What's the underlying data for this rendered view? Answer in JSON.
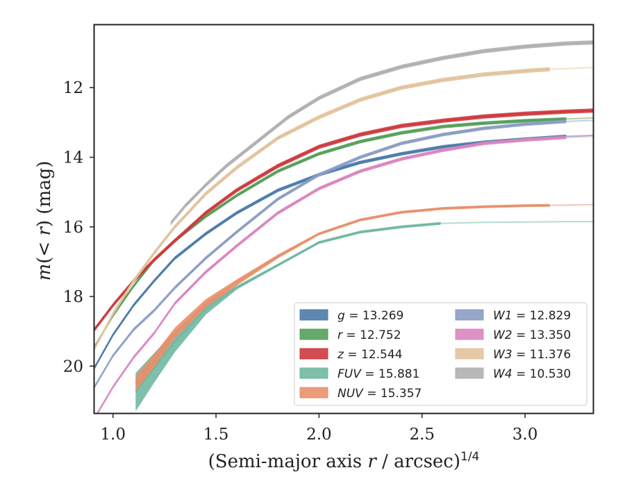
{
  "chart_data": {
    "type": "line",
    "xlabel": "(Semi-major axis r / arcsec)",
    "xlabel_parts": {
      "before": "(Semi-major axis ",
      "var": "r",
      "after": " / arcsec)",
      "sup": "1/4"
    },
    "ylabel": "m(<r) (mag)",
    "ylabel_parts": {
      "m": "m",
      "inner": "(< ",
      "r": "r",
      "close": ")",
      "unit": " (mag)"
    },
    "xlim": [
      0.91,
      3.33
    ],
    "ylim": [
      21.35,
      10.2
    ],
    "y_inverted": true,
    "xticks": [
      {
        "value": 1.0,
        "label": "1.0"
      },
      {
        "value": 1.5,
        "label": "1.5"
      },
      {
        "value": 2.0,
        "label": "2.0"
      },
      {
        "value": 2.5,
        "label": "2.5"
      },
      {
        "value": 3.0,
        "label": "3.0"
      }
    ],
    "yticks": [
      {
        "value": 12,
        "label": "12"
      },
      {
        "value": 14,
        "label": "14"
      },
      {
        "value": 16,
        "label": "16"
      },
      {
        "value": 18,
        "label": "18"
      },
      {
        "value": 20,
        "label": "20"
      }
    ],
    "grid": false,
    "legend_position": "lower-right",
    "legend_columns": 2,
    "series": [
      {
        "name": "g",
        "total": "13.269",
        "color": "#4C7BAA",
        "x": [
          0.91,
          1.0,
          1.1,
          1.2,
          1.3,
          1.45,
          1.6,
          1.8,
          2.0,
          2.2,
          2.4,
          2.6,
          2.8,
          3.0,
          3.2,
          3.33
        ],
        "y": [
          20.05,
          19.1,
          18.25,
          17.55,
          16.9,
          16.2,
          15.6,
          14.95,
          14.5,
          14.15,
          13.9,
          13.7,
          13.57,
          13.48,
          13.4,
          13.37
        ],
        "bright_until": 3.2,
        "band": 0.05
      },
      {
        "name": "r",
        "total": "12.752",
        "color": "#55A05A",
        "x": [
          0.91,
          1.0,
          1.1,
          1.2,
          1.3,
          1.45,
          1.6,
          1.8,
          2.0,
          2.2,
          2.4,
          2.6,
          2.8,
          3.0,
          3.2,
          3.33
        ],
        "y": [
          19.45,
          18.55,
          17.7,
          16.95,
          16.4,
          15.7,
          15.1,
          14.4,
          13.9,
          13.55,
          13.3,
          13.12,
          13.02,
          12.95,
          12.9,
          12.87
        ],
        "bright_until": 3.2,
        "band": 0.05
      },
      {
        "name": "z",
        "total": "12.544",
        "color": "#CC3A3E",
        "x": [
          0.91,
          1.0,
          1.1,
          1.2,
          1.3,
          1.45,
          1.6,
          1.8,
          2.0,
          2.2,
          2.4,
          2.6,
          2.8,
          3.0,
          3.2,
          3.33
        ],
        "y": [
          18.95,
          18.25,
          17.55,
          16.95,
          16.4,
          15.6,
          14.95,
          14.25,
          13.7,
          13.35,
          13.1,
          12.95,
          12.83,
          12.75,
          12.69,
          12.66
        ],
        "bright_until": 3.33,
        "band": 0.06
      },
      {
        "name": "FUV",
        "total": "15.881",
        "color": "#6FB8A2",
        "x": [
          1.11,
          1.2,
          1.3,
          1.45,
          1.6,
          1.8,
          2.0,
          2.2,
          2.4,
          2.59,
          2.8,
          3.0,
          3.2,
          3.33
        ],
        "y": [
          20.75,
          20.05,
          19.3,
          18.35,
          17.75,
          17.1,
          16.45,
          16.15,
          16.0,
          15.9,
          15.87,
          15.86,
          15.85,
          15.85
        ],
        "bright_until": 2.59,
        "band_start": 0.55,
        "band_end": 0.04
      },
      {
        "name": "NUV",
        "total": "15.357",
        "color": "#E8906A",
        "x": [
          1.11,
          1.2,
          1.3,
          1.45,
          1.6,
          1.8,
          2.0,
          2.2,
          2.4,
          2.6,
          2.8,
          3.0,
          3.12,
          3.33
        ],
        "y": [
          20.5,
          19.85,
          19.05,
          18.2,
          17.6,
          16.85,
          16.2,
          15.8,
          15.58,
          15.47,
          15.42,
          15.39,
          15.38,
          15.36
        ],
        "bright_until": 3.12,
        "band_start": 0.22,
        "band_end": 0.04
      },
      {
        "name": "W1",
        "total": "12.829",
        "color": "#8C9DC4",
        "x": [
          0.91,
          1.0,
          1.1,
          1.2,
          1.3,
          1.45,
          1.6,
          1.8,
          2.0,
          2.2,
          2.4,
          2.6,
          2.8,
          3.0,
          3.2,
          3.33
        ],
        "y": [
          20.6,
          19.7,
          18.95,
          18.4,
          17.75,
          16.9,
          16.15,
          15.2,
          14.5,
          14.0,
          13.6,
          13.35,
          13.17,
          13.05,
          12.97,
          12.94
        ],
        "bright_until": 3.2,
        "band": 0.05,
        "faint_before": 1.3
      },
      {
        "name": "W2",
        "total": "13.350",
        "color": "#D986BF",
        "x": [
          0.91,
          1.0,
          1.1,
          1.2,
          1.3,
          1.45,
          1.6,
          1.8,
          2.0,
          2.2,
          2.4,
          2.6,
          2.8,
          3.0,
          3.2,
          3.33
        ],
        "y": [
          21.5,
          20.6,
          19.75,
          19.05,
          18.2,
          17.3,
          16.55,
          15.6,
          14.9,
          14.4,
          14.05,
          13.8,
          13.6,
          13.5,
          13.43,
          13.4
        ],
        "bright_until": 3.2,
        "band": 0.05,
        "faint_before": 1.3
      },
      {
        "name": "W3",
        "total": "11.376",
        "color": "#E2C39C",
        "x": [
          0.91,
          1.0,
          1.1,
          1.2,
          1.3,
          1.45,
          1.6,
          1.8,
          2.0,
          2.2,
          2.4,
          2.6,
          2.8,
          3.0,
          3.12,
          3.33
        ],
        "y": [
          19.5,
          18.5,
          17.55,
          16.75,
          16.0,
          15.05,
          14.3,
          13.45,
          12.85,
          12.35,
          12.0,
          11.78,
          11.62,
          11.52,
          11.47,
          11.42
        ],
        "bright_until": 3.12,
        "band": 0.06
      },
      {
        "name": "W4",
        "total": "10.530",
        "color": "#B0B0B0",
        "x": [
          1.28,
          1.35,
          1.45,
          1.55,
          1.7,
          1.85,
          2.0,
          2.2,
          2.4,
          2.6,
          2.8,
          3.0,
          3.2,
          3.33
        ],
        "y": [
          15.9,
          15.4,
          14.8,
          14.25,
          13.55,
          12.85,
          12.3,
          11.75,
          11.4,
          11.15,
          10.95,
          10.82,
          10.73,
          10.7
        ],
        "bright_until": 3.33,
        "band": 0.06,
        "faint_before": 1.3
      }
    ]
  }
}
